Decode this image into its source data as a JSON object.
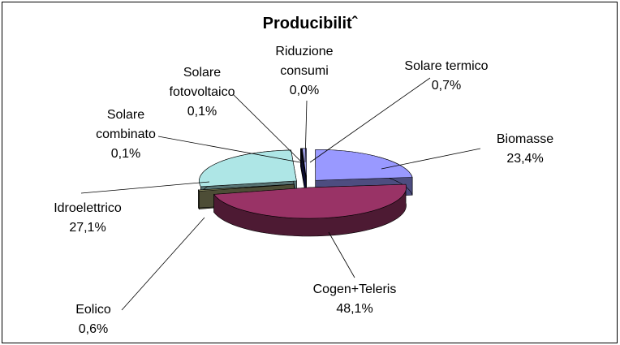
{
  "chart_data": {
    "type": "pie3d",
    "title": "Producibilitˆ",
    "categories": [
      "Biomasse",
      "Cogen+Teleris",
      "Eolico",
      "Idroelettrico",
      "Solare combinato",
      "Solare fotovoltaico",
      "Riduzione consumi",
      "Solare termico"
    ],
    "values": [
      23.4,
      48.1,
      0.6,
      27.1,
      0.1,
      0.1,
      0.0,
      0.7
    ],
    "value_labels": [
      "23,4%",
      "48,1%",
      "0,6%",
      "27,1%",
      "0,1%",
      "0,1%",
      "0,0%",
      "0,7%"
    ],
    "colors": [
      "#9999ff",
      "#993366",
      "#99996b",
      "#aee6e6",
      "#1a1a66",
      "#33339a",
      "#222255",
      "#a0a0e8"
    ]
  }
}
